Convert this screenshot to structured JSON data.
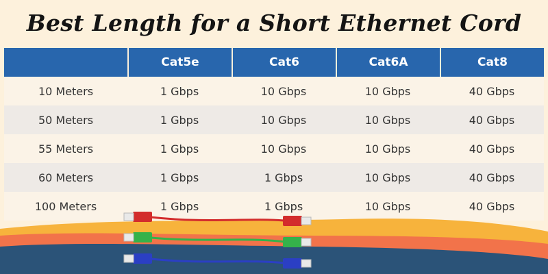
{
  "title": "Best Length for a Short Ethernet Cord",
  "table": {
    "columns": [
      "",
      "Cat5e",
      "Cat6",
      "Cat6A",
      "Cat8"
    ],
    "rows": [
      {
        "length": "10 Meters",
        "cat5e": "1 Gbps",
        "cat6": "10 Gbps",
        "cat6a": "10 Gbps",
        "cat8": "40 Gbps"
      },
      {
        "length": "50 Meters",
        "cat5e": "1 Gbps",
        "cat6": "10 Gbps",
        "cat6a": "10 Gbps",
        "cat8": "40 Gbps"
      },
      {
        "length": "55 Meters",
        "cat5e": "1 Gbps",
        "cat6": "10 Gbps",
        "cat6a": "10 Gbps",
        "cat8": "40 Gbps"
      },
      {
        "length": "60 Meters",
        "cat5e": "1 Gbps",
        "cat6": "1 Gbps",
        "cat6a": "10 Gbps",
        "cat8": "40 Gbps"
      },
      {
        "length": "100 Meters",
        "cat5e": "1 Gbps",
        "cat6": "1 Gbps",
        "cat6a": "10 Gbps",
        "cat8": "40 Gbps"
      }
    ]
  },
  "colors": {
    "header_blue": "#2866ad",
    "background_cream": "#fdf1dc",
    "wave_yellow": "#f7b33c",
    "wave_orange": "#f2734a",
    "wave_navy": "#2b5378",
    "cable_red": "#d32c2c",
    "cable_green": "#35b24a",
    "cable_blue": "#2b3fc4"
  },
  "icons": [
    "red-ethernet-cable-icon",
    "green-ethernet-cable-icon",
    "blue-ethernet-cable-icon"
  ]
}
